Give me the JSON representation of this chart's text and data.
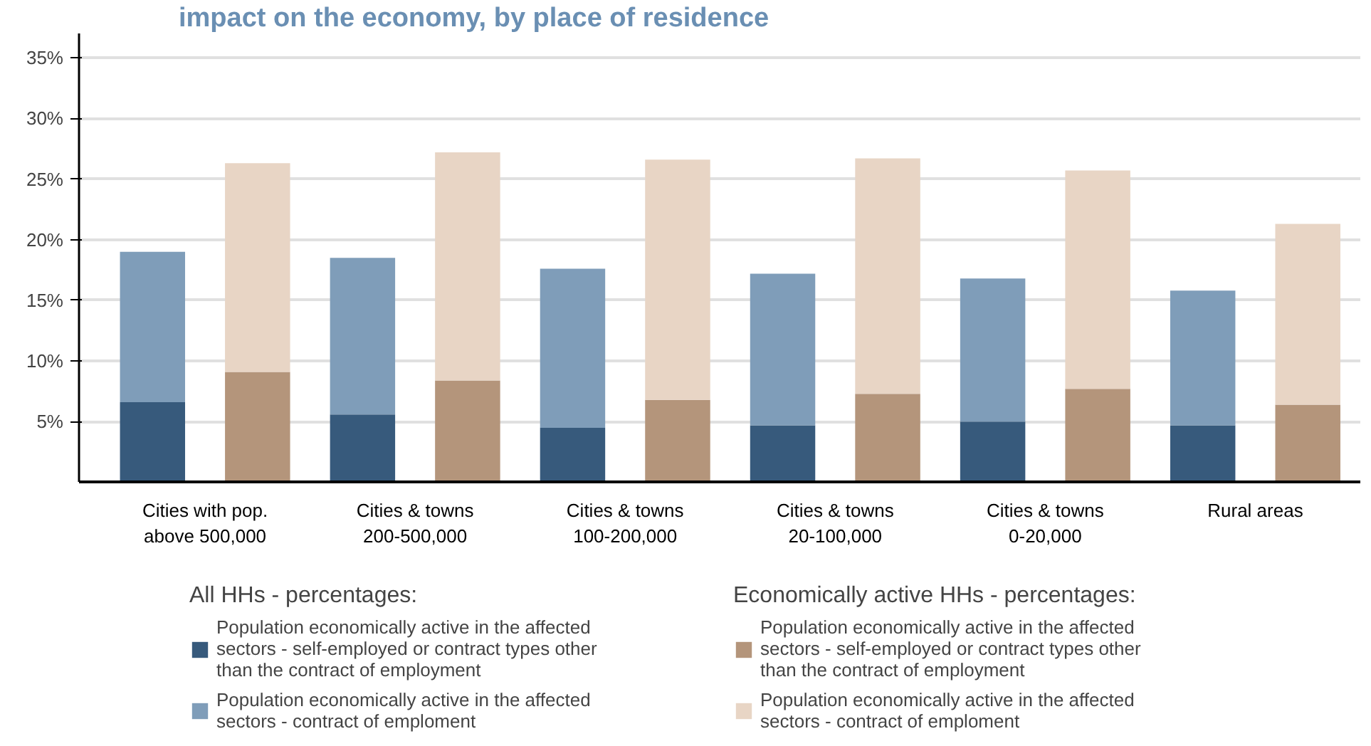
{
  "chart_data": {
    "type": "bar",
    "title": "impact on the economy, by place of residence",
    "stacked": true,
    "categories": [
      "Cities with pop.\nabove 500,000",
      null,
      "Cities & towns\n200-500,000",
      null,
      "Cities & towns\n100-200,000",
      null,
      "Cities & towns\n20-100,000",
      null,
      "Cities & towns\n0-20,000",
      null,
      "Rural areas",
      null
    ],
    "series": [
      {
        "name": "Population economically active in the affected sectors - self-employed or contract types other than the contract of employment",
        "color": "#375a7c",
        "values": [
          6.6,
          null,
          5.6,
          null,
          4.5,
          null,
          4.7,
          null,
          5.0,
          null,
          4.7,
          null
        ]
      },
      {
        "name": "Population economically active in the affected sectors - contract of emploment",
        "color": "#7f9db9",
        "values": [
          12.4,
          null,
          12.9,
          null,
          13.1,
          null,
          12.5,
          null,
          11.8,
          null,
          11.1,
          null
        ]
      },
      {
        "name": "Population economically active in the affected sectors - self-employed or contract types other than the contract of employment",
        "color": "#b4957b",
        "values": [
          null,
          9.1,
          null,
          8.4,
          null,
          6.8,
          null,
          7.3,
          null,
          7.7,
          null,
          6.4
        ]
      },
      {
        "name": "Population economically active in the affected sectors - contract of emploment",
        "color": "#e8d5c5",
        "values": [
          null,
          17.2,
          null,
          18.8,
          null,
          19.8,
          null,
          19.4,
          null,
          18.0,
          null,
          14.9
        ]
      }
    ],
    "annotations": [
      "All HHs - percentages:",
      "Economically active HHs - percentages:"
    ],
    "ylim": [
      0,
      37
    ],
    "yticks": [
      {
        "value": 5,
        "label": "5%"
      },
      {
        "value": 10,
        "label": "10%"
      },
      {
        "value": 15,
        "label": "15%"
      },
      {
        "value": 20,
        "label": "20%"
      },
      {
        "value": 25,
        "label": "25%"
      },
      {
        "value": 30,
        "label": "30%"
      },
      {
        "value": 35,
        "label": "35%"
      }
    ],
    "grid": "y",
    "legend": "bottom"
  }
}
